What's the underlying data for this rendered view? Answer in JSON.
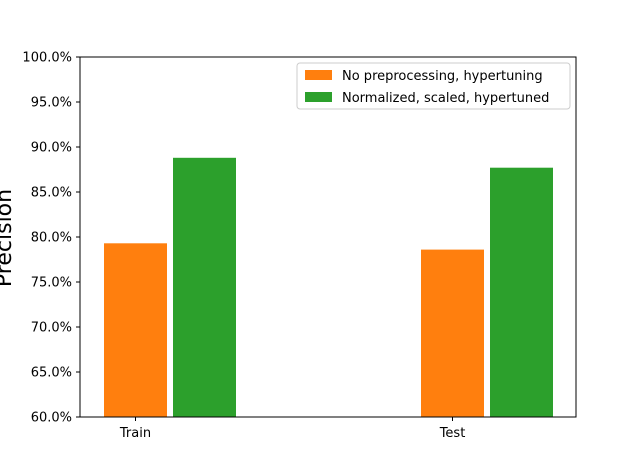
{
  "chart_data": {
    "type": "bar",
    "title": "",
    "xlabel": "",
    "ylabel": "Precision",
    "categories": [
      "Train",
      "Test"
    ],
    "series": [
      {
        "name": "No preprocessing, hypertuning",
        "values": [
          79.3,
          78.6
        ],
        "color": "#ff7f0e"
      },
      {
        "name": "Normalized, scaled, hypertuned",
        "values": [
          88.8,
          87.7
        ],
        "color": "#2ca02c"
      }
    ],
    "ylim": [
      60,
      100
    ],
    "yticks": [
      60,
      65,
      70,
      75,
      80,
      85,
      90,
      95,
      100
    ],
    "ytick_labels": [
      "60.0%",
      "65.0%",
      "70.0%",
      "75.0%",
      "80.0%",
      "85.0%",
      "90.0%",
      "95.0%",
      "100.0%"
    ],
    "grid": false,
    "legend_position": "top-right"
  }
}
